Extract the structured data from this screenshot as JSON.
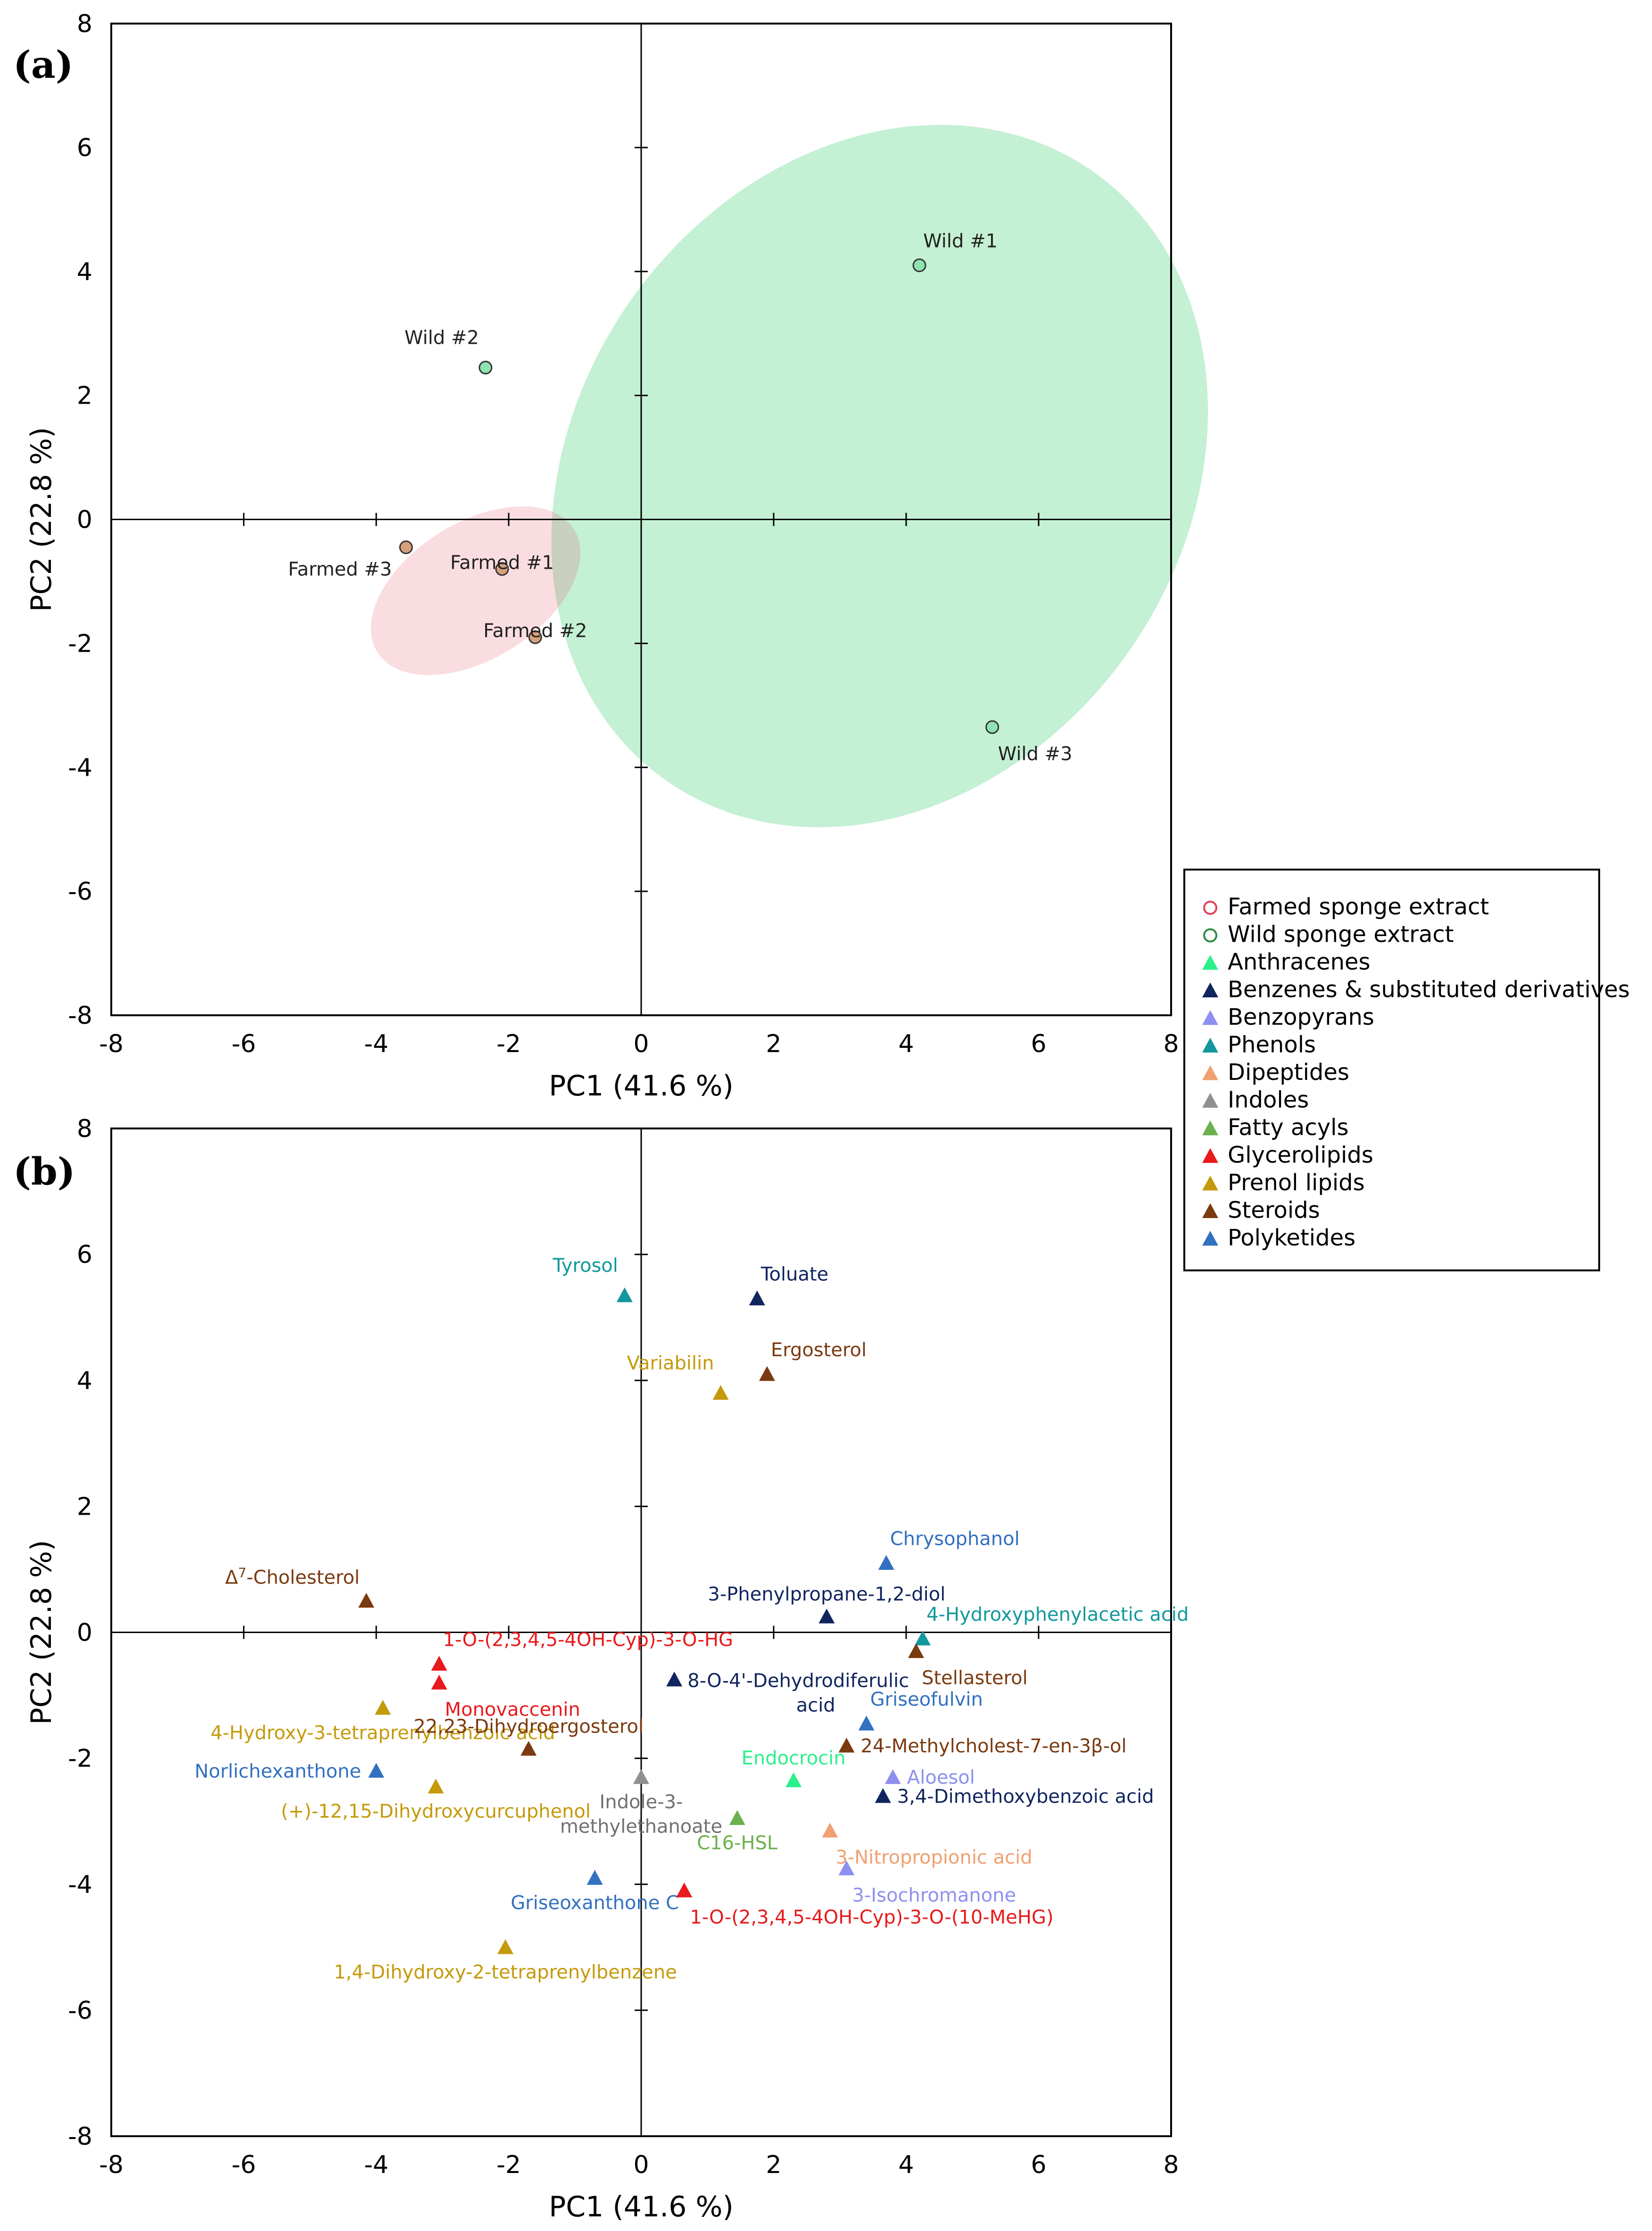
{
  "colors": {
    "farmed": "#e8a87c",
    "farmed_outline": "#e4405a",
    "wild": "#63d88f",
    "wild_dark": "#2d8a44",
    "Anthracenes": "#2bf08a",
    "Benzenes & substituted derivatives": "#10255e",
    "Benzopyrans": "#8e8ff0",
    "Phenols": "#12989c",
    "Dipeptides": "#f0a070",
    "Indoles": "#909090",
    "Fatty acyls": "#6ab04c",
    "Glycerolipids": "#e8191c",
    "Prenol lipids": "#c49a0a",
    "Steroids": "#7b3a10",
    "Polyketides": "#3270c0"
  },
  "legend": {
    "items": [
      {
        "label": "Farmed sponge extract",
        "marker": "circle",
        "category": "farmed"
      },
      {
        "label": "Wild sponge extract",
        "marker": "circle",
        "category": "wild"
      },
      {
        "label": "Anthracenes",
        "marker": "triangle",
        "category": "Anthracenes"
      },
      {
        "label": "Benzenes & substituted derivatives",
        "marker": "triangle",
        "category": "Benzenes & substituted derivatives"
      },
      {
        "label": "Benzopyrans",
        "marker": "triangle",
        "category": "Benzopyrans"
      },
      {
        "label": "Phenols",
        "marker": "triangle",
        "category": "Phenols"
      },
      {
        "label": "Dipeptides",
        "marker": "triangle",
        "category": "Dipeptides"
      },
      {
        "label": "Indoles",
        "marker": "triangle",
        "category": "Indoles"
      },
      {
        "label": "Fatty acyls",
        "marker": "triangle",
        "category": "Fatty acyls"
      },
      {
        "label": "Glycerolipids",
        "marker": "triangle",
        "category": "Glycerolipids"
      },
      {
        "label": "Prenol lipids",
        "marker": "triangle",
        "category": "Prenol lipids"
      },
      {
        "label": "Steroids",
        "marker": "triangle",
        "category": "Steroids"
      },
      {
        "label": "Polyketides",
        "marker": "triangle",
        "category": "Polyketides"
      }
    ]
  },
  "chart_data": [
    {
      "panel": "(a)",
      "type": "scatter",
      "xlabel": "PC1 (41.6 %)",
      "ylabel": "PC2 (22.8 %)",
      "xlim": [
        -8,
        8
      ],
      "ylim": [
        -8,
        8
      ],
      "xticks": [
        -8,
        -6,
        -4,
        -2,
        0,
        2,
        4,
        6,
        8
      ],
      "yticks": [
        -8,
        -6,
        -4,
        -2,
        0,
        2,
        4,
        6,
        8
      ],
      "ellipses": [
        {
          "group": "wild",
          "center": [
            3.6,
            0.7
          ],
          "semi_axes": [
            4.6,
            6.0
          ],
          "rotation_deg": 35
        },
        {
          "group": "farmed",
          "center": [
            -2.5,
            -1.15
          ],
          "semi_axes": [
            1.75,
            1.1
          ],
          "rotation_deg": -32
        }
      ],
      "series": [
        {
          "name": "Farmed sponge extract",
          "category": "farmed",
          "points": [
            {
              "label": "Farmed #1",
              "x": -2.1,
              "y": -0.8,
              "label_pos": "below"
            },
            {
              "label": "Farmed #2",
              "x": -1.6,
              "y": -1.9,
              "label_pos": "below"
            },
            {
              "label": "Farmed #3",
              "x": -3.55,
              "y": -0.45,
              "label_pos": "below-left"
            }
          ]
        },
        {
          "name": "Wild sponge extract",
          "category": "wild",
          "points": [
            {
              "label": "Wild #1",
              "x": 4.2,
              "y": 4.1,
              "label_pos": "above-right"
            },
            {
              "label": "Wild #2",
              "x": -2.35,
              "y": 2.45,
              "label_pos": "above-left"
            },
            {
              "label": "Wild #3",
              "x": 5.3,
              "y": -3.35,
              "label_pos": "below-right"
            }
          ]
        }
      ]
    },
    {
      "panel": "(b)",
      "type": "scatter",
      "xlabel": "PC1 (41.6 %)",
      "ylabel": "PC2 (22.8 %)",
      "xlim": [
        -8,
        8
      ],
      "ylim": [
        -8,
        8
      ],
      "xticks": [
        -8,
        -6,
        -4,
        -2,
        0,
        2,
        4,
        6,
        8
      ],
      "yticks": [
        -8,
        -6,
        -4,
        -2,
        0,
        2,
        4,
        6,
        8
      ],
      "points": [
        {
          "label": "Tyrosol",
          "category": "Phenols",
          "x": -0.25,
          "y": 5.35,
          "label_pos": "above-left"
        },
        {
          "label": "Toluate",
          "category": "Benzenes & substituted derivatives",
          "x": 1.75,
          "y": 5.3,
          "label_pos": "above-right"
        },
        {
          "label": "Variabilin",
          "category": "Prenol lipids",
          "x": 1.2,
          "y": 3.8,
          "label_pos": "above-left"
        },
        {
          "label": "Ergosterol",
          "category": "Steroids",
          "x": 1.9,
          "y": 4.1,
          "label_pos": "above-right"
        },
        {
          "label": "Chrysophanol",
          "category": "Polyketides",
          "x": 3.7,
          "y": 1.1,
          "label_pos": "above-right"
        },
        {
          "label": "3-Phenylpropane-1,2-diol",
          "category": "Benzenes & substituted derivatives",
          "x": 2.8,
          "y": 0.25,
          "label_pos": "above-mid"
        },
        {
          "label": "4-Hydroxyphenylacetic acid",
          "category": "Phenols",
          "x": 4.25,
          "y": -0.1,
          "label_pos": "above-right"
        },
        {
          "label": "Stellasterol",
          "category": "Steroids",
          "x": 4.15,
          "y": -0.3,
          "label_pos": "below-right"
        },
        {
          "label": "Δ7-Cholesterol",
          "category": "Steroids",
          "x": -4.15,
          "y": 0.5,
          "label_pos": "above-left"
        },
        {
          "label": "1-O-(2,3,4,5-4OH-Cyp)-3-O-HG",
          "category": "Glycerolipids",
          "x": -3.05,
          "y": -0.5,
          "label_pos": "above-right"
        },
        {
          "label": "Monovaccenin",
          "category": "Glycerolipids",
          "x": -3.05,
          "y": -0.8,
          "label_pos": "below-right"
        },
        {
          "label": "4-Hydroxy-3-tetraprenylbenzoic acid",
          "category": "Prenol lipids",
          "x": -3.9,
          "y": -1.2,
          "label_pos": "below-mid"
        },
        {
          "label": "22,23-Dihydroergosterol",
          "category": "Steroids",
          "x": -1.7,
          "y": -1.85,
          "label_pos": "above-mid"
        },
        {
          "label": "8-O-4'-Dehydrodiferulic acid",
          "category": "Benzenes & substituted derivatives",
          "x": 0.5,
          "y": -0.75,
          "label_pos": "right"
        },
        {
          "label": "Griseofulvin",
          "category": "Polyketides",
          "x": 3.4,
          "y": -1.45,
          "label_pos": "above-right"
        },
        {
          "label": "24-Methylcholest-7-en-3β-ol",
          "category": "Steroids",
          "x": 3.1,
          "y": -1.8,
          "label_pos": "right"
        },
        {
          "label": "Norlichexanthone",
          "category": "Polyketides",
          "x": -4.0,
          "y": -2.2,
          "label_pos": "left"
        },
        {
          "label": "(+)-12,15-Dihydroxycurcuphenol",
          "category": "Prenol lipids",
          "x": -3.1,
          "y": -2.45,
          "label_pos": "below-mid"
        },
        {
          "label": "Indole-3-methylethanoate",
          "category": "Indoles",
          "x": 0.0,
          "y": -2.3,
          "label_pos": "below-mid"
        },
        {
          "label": "Endocrocin",
          "category": "Anthracenes",
          "x": 2.3,
          "y": -2.35,
          "label_pos": "above-mid"
        },
        {
          "label": "Aloesol",
          "category": "Benzopyrans",
          "x": 3.8,
          "y": -2.3,
          "label_pos": "right"
        },
        {
          "label": "3,4-Dimethoxybenzoic acid",
          "category": "Benzenes & substituted derivatives",
          "x": 3.65,
          "y": -2.6,
          "label_pos": "right"
        },
        {
          "label": "C16-HSL",
          "category": "Fatty acyls",
          "x": 1.45,
          "y": -2.95,
          "label_pos": "below-mid"
        },
        {
          "label": "3-Nitropropionic acid",
          "category": "Dipeptides",
          "x": 2.85,
          "y": -3.15,
          "label_pos": "below-right"
        },
        {
          "label": "3-Isochromanone",
          "category": "Benzopyrans",
          "x": 3.1,
          "y": -3.75,
          "label_pos": "below-right"
        },
        {
          "label": "Griseoxanthone C",
          "category": "Polyketides",
          "x": -0.7,
          "y": -3.9,
          "label_pos": "below-mid"
        },
        {
          "label": "1-O-(2,3,4,5-4OH-Cyp)-3-O-(10-MeHG)",
          "category": "Glycerolipids",
          "x": 0.65,
          "y": -4.1,
          "label_pos": "below-right"
        },
        {
          "label": "1,4-Dihydroxy-2-tetraprenylbenzene",
          "category": "Prenol lipids",
          "x": -2.05,
          "y": -5.0,
          "label_pos": "below-mid"
        }
      ]
    }
  ]
}
